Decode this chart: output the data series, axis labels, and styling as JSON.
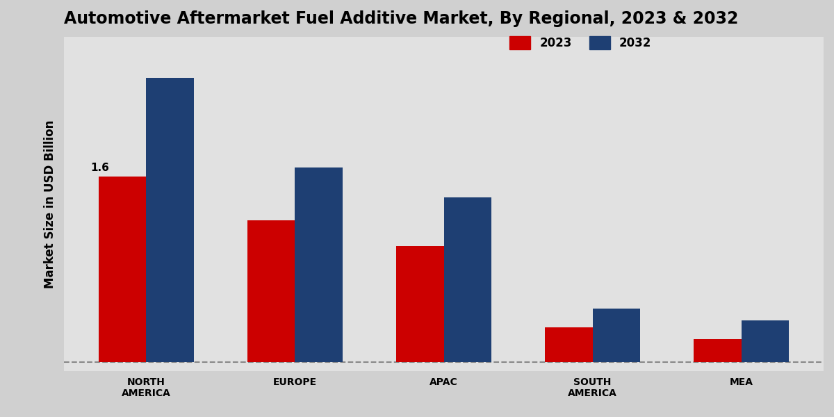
{
  "title": "Automotive Aftermarket Fuel Additive Market, By Regional, 2023 & 2032",
  "ylabel": "Market Size in USD Billion",
  "categories": [
    "NORTH\nAMERICA",
    "EUROPE",
    "APAC",
    "SOUTH\nAMERICA",
    "MEA"
  ],
  "values_2023": [
    1.6,
    1.22,
    1.0,
    0.3,
    0.2
  ],
  "values_2032": [
    2.45,
    1.68,
    1.42,
    0.46,
    0.36
  ],
  "color_2023": "#cc0000",
  "color_2032": "#1e3f73",
  "bar_width": 0.32,
  "annotation_label": "1.6",
  "background_color_outer": "#c8c8c8",
  "background_color_inner": "#e8e8e8",
  "title_fontsize": 17,
  "legend_fontsize": 12,
  "ylabel_fontsize": 12,
  "tick_fontsize": 10,
  "annotation_fontsize": 11
}
